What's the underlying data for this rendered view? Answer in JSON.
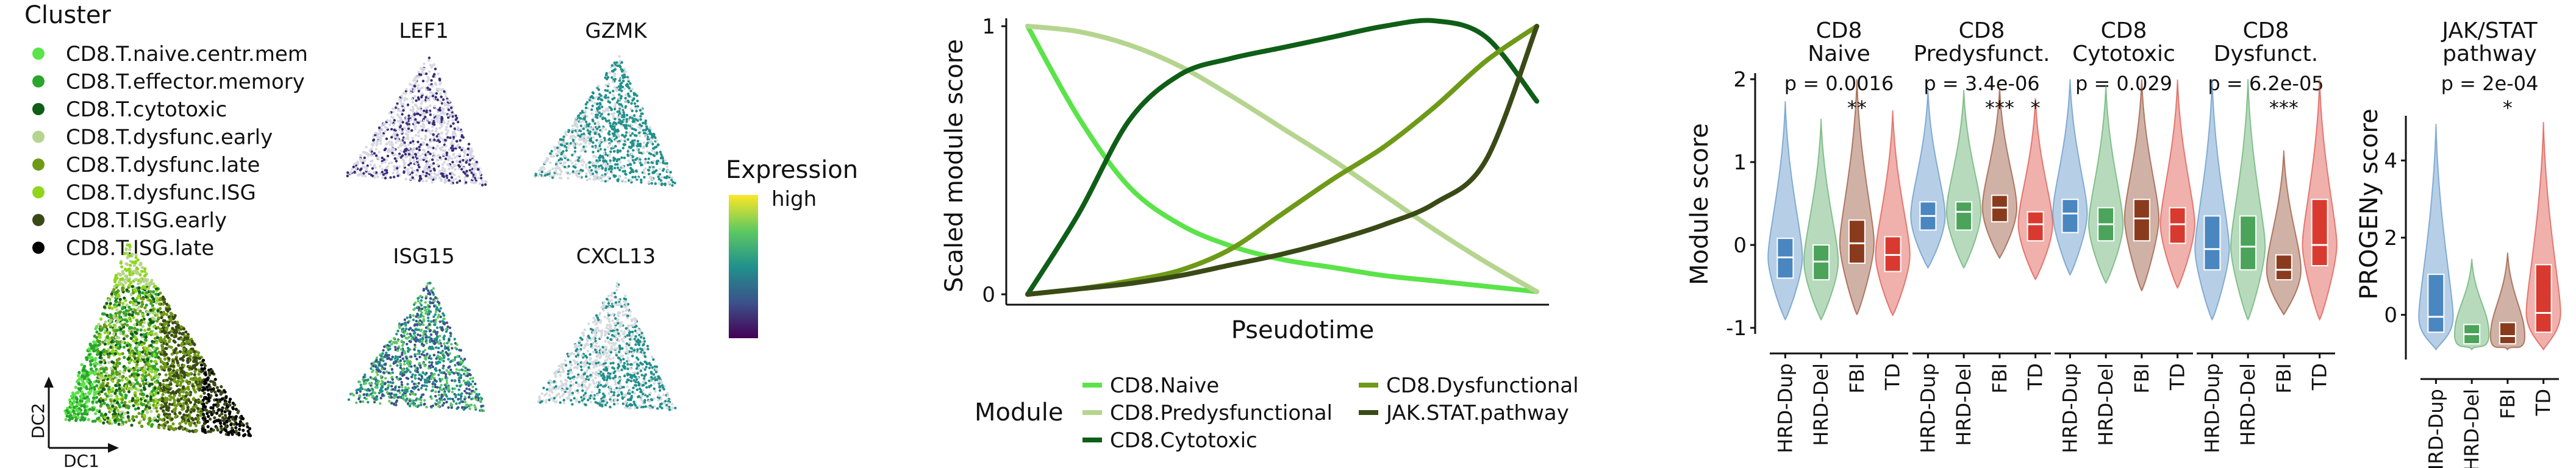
{
  "panel_a": {
    "legend_title": "Cluster",
    "clusters": [
      {
        "label": "CD8.T.naive.centr.mem",
        "color": "#5be34a"
      },
      {
        "label": "CD8.T.effector.memory",
        "color": "#2aa52d"
      },
      {
        "label": "CD8.T.cytotoxic",
        "color": "#0f5e17"
      },
      {
        "label": "CD8.T.dysfunc.early",
        "color": "#b5d58f"
      },
      {
        "label": "CD8.T.dysfunc.late",
        "color": "#6e9a18"
      },
      {
        "label": "CD8.T.dysfunc.ISG",
        "color": "#8fd61a"
      },
      {
        "label": "CD8.T.ISG.early",
        "color": "#3a4a16"
      },
      {
        "label": "CD8.T.ISG.late",
        "color": "#000000"
      }
    ],
    "axis_x": "DC1",
    "axis_y": "DC2",
    "genes": [
      "LEF1",
      "GZMK",
      "ISG15",
      "CXCL13"
    ],
    "colorbar_title": "Expression",
    "colorbar_high": "high"
  },
  "chart_data": [
    {
      "type": "line",
      "ylabel": "Scaled module score",
      "xlabel": "Pseudotime",
      "yticks": [
        "0",
        "1"
      ],
      "ylim": [
        0,
        1
      ],
      "xlim": [
        0,
        1
      ],
      "legend_title": "Module",
      "series": [
        {
          "name": "CD8.Naive",
          "color": "#5be34a",
          "x": [
            0,
            0.1,
            0.2,
            0.3,
            0.4,
            0.5,
            0.6,
            0.7,
            0.8,
            0.9,
            1.0
          ],
          "y": [
            1.0,
            0.66,
            0.4,
            0.26,
            0.18,
            0.13,
            0.1,
            0.07,
            0.05,
            0.03,
            0.01
          ]
        },
        {
          "name": "CD8.Predysfunctional",
          "color": "#b5d58f",
          "x": [
            0,
            0.1,
            0.2,
            0.3,
            0.4,
            0.5,
            0.6,
            0.7,
            0.8,
            0.9,
            1.0
          ],
          "y": [
            1.0,
            0.98,
            0.93,
            0.85,
            0.74,
            0.62,
            0.5,
            0.37,
            0.24,
            0.12,
            0.01
          ]
        },
        {
          "name": "CD8.Cytotoxic",
          "color": "#0f5e17",
          "x": [
            0,
            0.1,
            0.2,
            0.3,
            0.4,
            0.5,
            0.6,
            0.7,
            0.8,
            0.9,
            1.0
          ],
          "y": [
            0.0,
            0.3,
            0.65,
            0.82,
            0.88,
            0.92,
            0.96,
            1.0,
            1.02,
            0.96,
            0.72
          ]
        },
        {
          "name": "CD8.Dysfunctional",
          "color": "#6e9a18",
          "x": [
            0,
            0.1,
            0.2,
            0.3,
            0.4,
            0.5,
            0.6,
            0.7,
            0.8,
            0.9,
            1.0
          ],
          "y": [
            0.0,
            0.02,
            0.05,
            0.09,
            0.17,
            0.3,
            0.43,
            0.55,
            0.7,
            0.87,
            1.0
          ]
        },
        {
          "name": "JAK.STAT.pathway",
          "color": "#3a4a16",
          "x": [
            0,
            0.1,
            0.2,
            0.3,
            0.4,
            0.5,
            0.6,
            0.7,
            0.8,
            0.9,
            1.0
          ],
          "y": [
            0.0,
            0.02,
            0.04,
            0.07,
            0.11,
            0.15,
            0.2,
            0.26,
            0.34,
            0.5,
            1.0
          ]
        }
      ]
    },
    {
      "type": "violin",
      "ylabel": "Module score",
      "ylim": [
        -1,
        2
      ],
      "yticks": [
        "-1",
        "0",
        "1",
        "2"
      ],
      "categories": [
        "HRD-Dup",
        "HRD-Del",
        "FBI",
        "TD"
      ],
      "category_colors": [
        "#4a86c0",
        "#4ca35a",
        "#8a3b1e",
        "#d93a2f"
      ],
      "panels": [
        {
          "title": [
            "CD8",
            "Naive"
          ],
          "pvalue": "p = 0.0016",
          "stars": [
            "",
            "",
            "**",
            ""
          ],
          "median": [
            -0.15,
            -0.2,
            0.02,
            -0.12
          ],
          "q1": [
            -0.4,
            -0.42,
            -0.22,
            -0.32
          ],
          "q3": [
            0.08,
            0.0,
            0.3,
            0.1
          ]
        },
        {
          "title": [
            "CD8",
            "Predysfunct."
          ],
          "pvalue": "p = 3.4e-06",
          "stars": [
            "",
            "",
            "***",
            "*"
          ],
          "median": [
            0.35,
            0.4,
            0.45,
            0.25
          ],
          "q1": [
            0.18,
            0.18,
            0.28,
            0.05
          ],
          "q3": [
            0.52,
            0.52,
            0.6,
            0.4
          ]
        },
        {
          "title": [
            "CD8",
            "Cytotoxic"
          ],
          "pvalue": "p = 0.029",
          "stars": [
            "",
            "",
            "",
            ""
          ],
          "median": [
            0.38,
            0.25,
            0.32,
            0.25
          ],
          "q1": [
            0.15,
            0.05,
            0.05,
            0.02
          ],
          "q3": [
            0.55,
            0.45,
            0.55,
            0.45
          ]
        },
        {
          "title": [
            "CD8",
            "Dysfunct."
          ],
          "pvalue": "p = 6.2e-05",
          "stars": [
            "",
            "",
            "***",
            ""
          ],
          "median": [
            -0.05,
            -0.02,
            -0.3,
            0.0
          ],
          "q1": [
            -0.3,
            -0.3,
            -0.42,
            -0.25
          ],
          "q3": [
            0.35,
            0.35,
            -0.12,
            0.55
          ]
        }
      ]
    },
    {
      "type": "violin",
      "ylabel": "PROGENy score",
      "ylim": [
        -1,
        5
      ],
      "yticks": [
        "0",
        "2",
        "4"
      ],
      "categories": [
        "HRD-Dup",
        "HRD-Del",
        "FBI",
        "TD"
      ],
      "category_colors": [
        "#4a86c0",
        "#4ca35a",
        "#8a3b1e",
        "#d93a2f"
      ],
      "panels": [
        {
          "title": [
            "JAK/STAT",
            "pathway"
          ],
          "pvalue": "p = 2e-04",
          "stars": [
            "",
            "",
            "*",
            ""
          ],
          "median": [
            -0.05,
            -0.5,
            -0.55,
            0.05
          ],
          "q1": [
            -0.45,
            -0.75,
            -0.75,
            -0.45
          ],
          "q3": [
            1.05,
            -0.25,
            -0.2,
            1.3
          ]
        }
      ]
    }
  ]
}
